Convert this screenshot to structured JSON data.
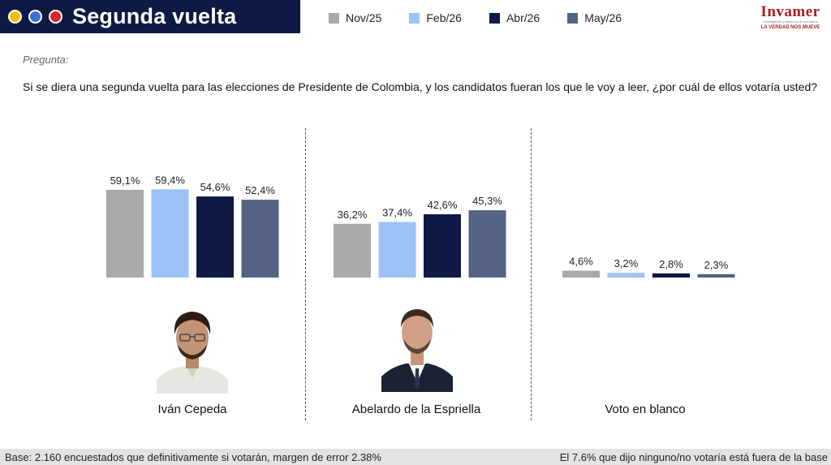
{
  "header": {
    "title": "Segunda vuelta",
    "dot_colors": [
      "#f2c200",
      "#3b6fd6",
      "#d62828"
    ]
  },
  "logo": {
    "name": "Invamer",
    "subtitle": "investigación y asesoría de mercados",
    "tagline": "LA VERDAD NOS MUEVE"
  },
  "question": {
    "label": "Pregunta:",
    "text": "Si se diera una segunda vuelta para las elecciones de Presidente de Colombia, y los candidatos fueran los que le voy a leer, ¿por cuál de ellos votaría usted?"
  },
  "chart_data": {
    "type": "bar",
    "title": "",
    "categories": [
      "Iván Cepeda",
      "Abelardo de la Espriella",
      "Voto en blanco"
    ],
    "series": [
      {
        "name": "Nov/25",
        "color": "#a9a9a9",
        "values": [
          59.1,
          36.2,
          4.6
        ],
        "labels": [
          "59,1%",
          "36,2%",
          "4,6%"
        ]
      },
      {
        "name": "Feb/26",
        "color": "#9cc3f5",
        "values": [
          59.4,
          37.4,
          3.2
        ],
        "labels": [
          "59,4%",
          "37,4%",
          "3,2%"
        ]
      },
      {
        "name": "Abr/26",
        "color": "#0e1a45",
        "values": [
          54.6,
          42.6,
          2.8
        ],
        "labels": [
          "54,6%",
          "42,6%",
          "2,8%"
        ]
      },
      {
        "name": "May/26",
        "color": "#546383",
        "values": [
          52.4,
          45.3,
          2.3
        ],
        "labels": [
          "52,4%",
          "45,3%",
          "2,3%"
        ]
      }
    ],
    "ylim": [
      0,
      100
    ],
    "grid": false,
    "legend": "top"
  },
  "footer": {
    "base": "Base: 2.160 encuestados que definitivamente si votarán, margen de error 2.38%",
    "note": "El 7.6% que dijo ninguno/no votaría está fuera de la base"
  }
}
